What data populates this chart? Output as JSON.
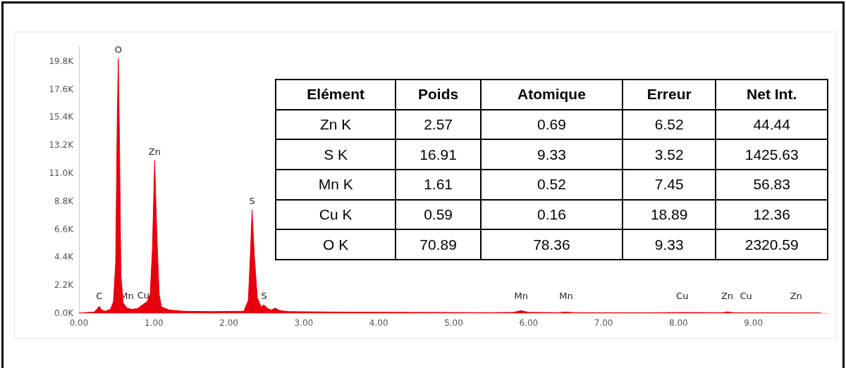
{
  "chart_data": [
    {
      "type": "area",
      "color": "#e8000d",
      "grid": false,
      "marker": "none",
      "x": [
        0.0,
        0.1,
        0.2,
        0.24,
        0.27,
        0.3,
        0.35,
        0.42,
        0.46,
        0.49,
        0.51,
        0.525,
        0.54,
        0.56,
        0.59,
        0.64,
        0.7,
        0.78,
        0.86,
        0.91,
        0.95,
        0.98,
        1.01,
        1.04,
        1.07,
        1.1,
        1.2,
        1.4,
        1.8,
        2.2,
        2.26,
        2.29,
        2.31,
        2.34,
        2.38,
        2.43,
        2.47,
        2.52,
        2.57,
        2.62,
        2.68,
        2.8,
        3.5,
        4.5,
        5.5,
        5.8,
        5.9,
        6.0,
        6.4,
        6.5,
        6.6,
        7.5,
        8.05,
        8.6,
        8.65,
        8.72,
        8.9,
        9.57,
        9.9
      ],
      "values": [
        0,
        50,
        80,
        300,
        550,
        250,
        150,
        300,
        900,
        4000,
        15000,
        20000,
        14000,
        3000,
        800,
        400,
        300,
        350,
        700,
        900,
        1500,
        5000,
        12000,
        6000,
        1500,
        500,
        250,
        150,
        120,
        150,
        1000,
        5000,
        8100,
        4500,
        1200,
        500,
        650,
        350,
        250,
        400,
        200,
        120,
        80,
        60,
        40,
        60,
        200,
        60,
        40,
        80,
        40,
        30,
        50,
        40,
        100,
        40,
        30,
        25,
        20
      ],
      "xlim": [
        0,
        10
      ],
      "ylim": [
        0,
        21000
      ],
      "xticks": [
        {
          "value": 0,
          "label": "0.00"
        },
        {
          "value": 1,
          "label": "1.00"
        },
        {
          "value": 2,
          "label": "2.00"
        },
        {
          "value": 3,
          "label": "3.00"
        },
        {
          "value": 4,
          "label": "4.00"
        },
        {
          "value": 5,
          "label": "5.00"
        },
        {
          "value": 6,
          "label": "6.00"
        },
        {
          "value": 7,
          "label": "7.00"
        },
        {
          "value": 8,
          "label": "8.00"
        },
        {
          "value": 9,
          "label": "9.00"
        }
      ],
      "yticks": [
        {
          "value": 0,
          "label": "0.0K"
        },
        {
          "value": 2200,
          "label": "2.2K"
        },
        {
          "value": 4400,
          "label": "4.4K"
        },
        {
          "value": 6600,
          "label": "6.6K"
        },
        {
          "value": 8800,
          "label": "8.8K"
        },
        {
          "value": 11000,
          "label": "11.0K"
        },
        {
          "value": 13200,
          "label": "13.2K"
        },
        {
          "value": 15400,
          "label": "15.4K"
        },
        {
          "value": 17600,
          "label": "17.6K"
        },
        {
          "value": 19800,
          "label": "19.8K"
        }
      ],
      "annotations": [
        {
          "text": "O",
          "x": 0.525,
          "y": 20000
        },
        {
          "text": "C",
          "x": 0.27,
          "y": 550
        },
        {
          "text": "Mn",
          "x": 0.64,
          "y": 400
        },
        {
          "text": "Cu",
          "x": 0.86,
          "y": 700
        },
        {
          "text": "Zn",
          "x": 1.01,
          "y": 12000
        },
        {
          "text": "S",
          "x": 2.31,
          "y": 8100
        },
        {
          "text": "S",
          "x": 2.47,
          "y": 650
        },
        {
          "text": "Mn",
          "x": 5.9,
          "y": 200
        },
        {
          "text": "Mn",
          "x": 6.5,
          "y": 80
        },
        {
          "text": "Cu",
          "x": 8.05,
          "y": 50
        },
        {
          "text": "Zn",
          "x": 8.65,
          "y": 100
        },
        {
          "text": "Cu",
          "x": 8.9,
          "y": 30
        },
        {
          "text": "Zn",
          "x": 9.57,
          "y": 25
        }
      ]
    },
    {
      "type": "other",
      "data_labels": true,
      "ylabel": "Elément",
      "categories": [
        "Zn K",
        "S K",
        "Mn K",
        "Cu K",
        "O K"
      ],
      "series": [
        {
          "name": "Poids",
          "values": [
            2.57,
            16.91,
            1.61,
            0.59,
            70.89
          ]
        },
        {
          "name": "Atomique",
          "values": [
            0.69,
            9.33,
            0.52,
            0.16,
            78.36
          ]
        },
        {
          "name": "Erreur",
          "values": [
            6.52,
            3.52,
            7.45,
            18.89,
            9.33
          ]
        },
        {
          "name": "Net Int.",
          "values": [
            44.44,
            1425.63,
            56.83,
            12.36,
            2320.59
          ]
        }
      ]
    }
  ]
}
